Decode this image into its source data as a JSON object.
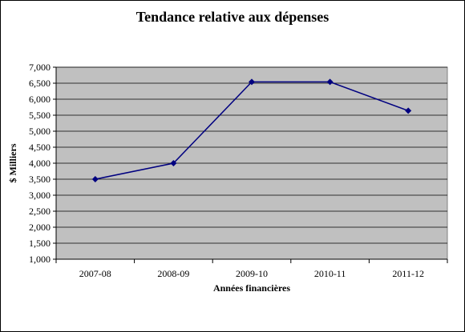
{
  "chart_data": {
    "type": "line",
    "title": "Tendance relative aux dépenses",
    "xlabel": "Années financières",
    "ylabel": "$ Milliers",
    "categories": [
      "2007-08",
      "2008-09",
      "2009-10",
      "2010-11",
      "2011-12"
    ],
    "series": [
      {
        "values": [
          3500,
          4000,
          6540,
          6540,
          5640
        ]
      }
    ],
    "ylim": [
      1000,
      7000
    ],
    "ytick_step": 500,
    "ytick_labels": [
      "1,000",
      "1,500",
      "2,000",
      "2,500",
      "3,000",
      "3,500",
      "4,000",
      "4,500",
      "5,000",
      "5,500",
      "6,000",
      "6,500",
      "7,000"
    ],
    "grid": true,
    "colors": {
      "plot_background": "#c0c0c0",
      "line": "#000080",
      "grid": "#000000"
    }
  }
}
